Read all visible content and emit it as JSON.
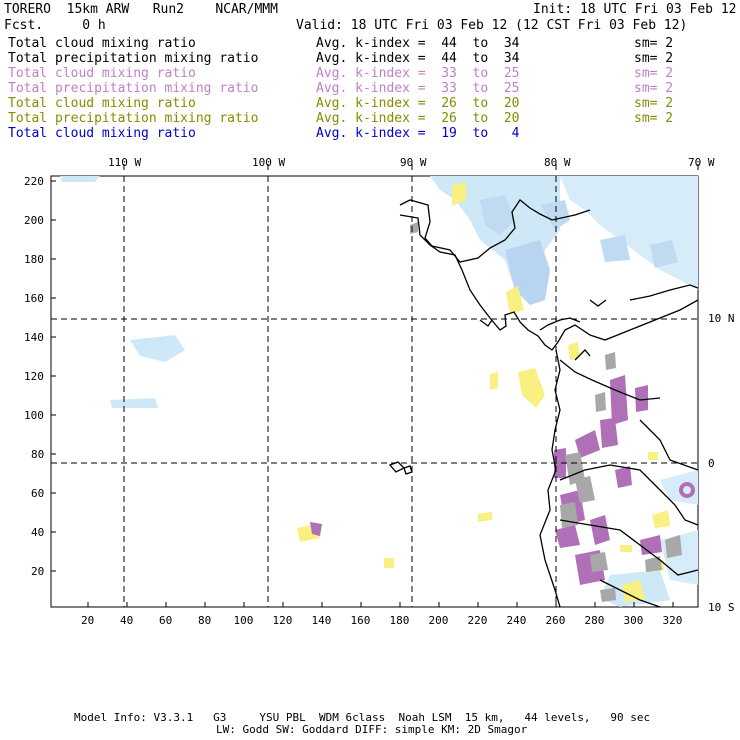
{
  "header": {
    "left_title": "TORERO  15km ARW   Run2    NCAR/MMM",
    "fcst": "Fcst.     0 h",
    "init": "Init: 18 UTC Fri 03 Feb 12",
    "valid": "Valid: 18 UTC Fri 03 Feb 12 (12 CST Fri 03 Feb 12)"
  },
  "legend": [
    {
      "field": "Total cloud mixing ratio",
      "kindex": "Avg. k-index =  44  to  34",
      "sm": "sm= 2",
      "color": "#000000"
    },
    {
      "field": "Total precipitation mixing ratio",
      "kindex": "Avg. k-index =  44  to  34",
      "sm": "sm= 2",
      "color": "#000000"
    },
    {
      "field": "Total cloud mixing ratio",
      "kindex": "Avg. k-index =  33  to  25",
      "sm": "sm= 2",
      "color": "#c080c8"
    },
    {
      "field": "Total precipitation mixing ratio",
      "kindex": "Avg. k-index =  33  to  25",
      "sm": "sm= 2",
      "color": "#c080c8"
    },
    {
      "field": "Total cloud mixing ratio",
      "kindex": "Avg. k-index =  26  to  20",
      "sm": "sm= 2",
      "color": "#8a8a00"
    },
    {
      "field": "Total precipitation mixing ratio",
      "kindex": "Avg. k-index =  26  to  20",
      "sm": "sm= 2",
      "color": "#8a8a00"
    },
    {
      "field": "Total cloud mixing ratio",
      "kindex": "Avg. k-index =  19  to   4",
      "sm": "",
      "color": "#0000d0"
    }
  ],
  "map": {
    "lon_labels": [
      "110 W",
      "100 W",
      "90 W",
      "80 W",
      "70 W"
    ],
    "lat_labels": [
      "10 N",
      "0",
      "10 S"
    ],
    "y_ticks": [
      "220",
      "200",
      "180",
      "160",
      "140",
      "120",
      "100",
      "80",
      "60",
      "40",
      "20"
    ],
    "x_ticks": [
      "20",
      "40",
      "60",
      "80",
      "100",
      "120",
      "140",
      "160",
      "180",
      "200",
      "220",
      "240",
      "260",
      "280",
      "300",
      "320"
    ],
    "colors": {
      "light_blue": "#cfe8f8",
      "mid_blue": "#b8d4f0",
      "yellow": "#f8f080",
      "purple": "#b070b8",
      "gray": "#a8a8a8"
    }
  },
  "footer": {
    "line1": "Model Info: V3.3.1   G3     YSU PBL  WDM 6class  Noah LSM  15 km,   44 levels,   90 sec",
    "line2": "LW: Godd SW: Goddard DIFF: simple KM: 2D Smagor"
  }
}
